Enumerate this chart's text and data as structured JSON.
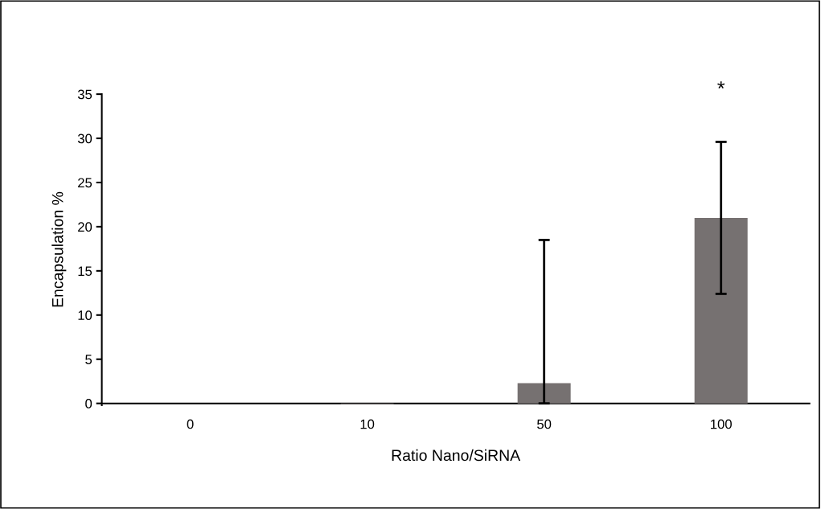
{
  "chart_data": {
    "type": "bar",
    "xlabel": "Ratio Nano/SiRNA",
    "ylabel": "Encapsulation %",
    "categories": [
      "0",
      "10",
      "50",
      "100"
    ],
    "values": [
      0,
      -0.1,
      2.3,
      21.0
    ],
    "errors": [
      null,
      null,
      [
        0,
        18.5
      ],
      [
        12.4,
        29.6
      ]
    ],
    "color": "#767171",
    "ylim": [
      -0.2,
      35
    ],
    "yticks": [
      0,
      5,
      10,
      15,
      20,
      25,
      30,
      35
    ],
    "grid": false,
    "annotations": [
      {
        "text": "*",
        "x": "100",
        "y": 29.6
      }
    ]
  }
}
